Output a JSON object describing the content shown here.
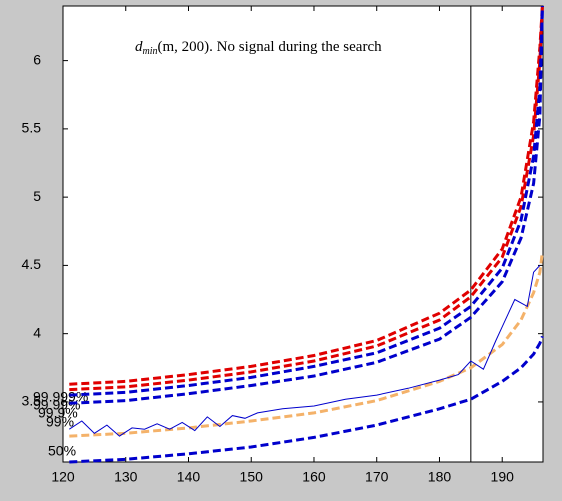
{
  "chart_data": {
    "type": "line",
    "title_symbol": "d",
    "title_subscript": "min",
    "title_text": "(m, 200). No signal during the search",
    "xlim": [
      120,
      196.5
    ],
    "ylim": [
      3.06,
      6.4
    ],
    "xticks": [
      120,
      130,
      140,
      150,
      160,
      170,
      180,
      190
    ],
    "yticks": [
      3.5,
      4,
      4.5,
      5,
      5.5,
      6
    ],
    "vline": 185,
    "annotations": [
      "99.999%",
      "99.99%",
      "99.9%",
      "99%",
      "50%"
    ],
    "series": [
      {
        "color": "#e00000",
        "linestyle": "dashed",
        "x": [
          121,
          130,
          140,
          150,
          160,
          170,
          180,
          185,
          190,
          193,
          195,
          196,
          196.4
        ],
        "values": [
          3.63,
          3.65,
          3.7,
          3.76,
          3.84,
          3.95,
          4.15,
          4.32,
          4.62,
          5.0,
          5.55,
          6.1,
          6.4
        ]
      },
      {
        "color": "#e00000",
        "linestyle": "dashed",
        "x": [
          121,
          130,
          140,
          150,
          160,
          170,
          180,
          185,
          190,
          193,
          195,
          196,
          196.4
        ],
        "values": [
          3.59,
          3.61,
          3.66,
          3.72,
          3.8,
          3.91,
          4.1,
          4.27,
          4.56,
          4.93,
          5.45,
          6.0,
          6.4
        ]
      },
      {
        "color": "#0000cc",
        "linestyle": "dashed",
        "x": [
          121,
          130,
          140,
          150,
          160,
          170,
          180,
          185,
          190,
          193,
          195,
          196,
          196.4
        ],
        "values": [
          3.55,
          3.57,
          3.62,
          3.68,
          3.76,
          3.86,
          4.04,
          4.2,
          4.48,
          4.83,
          5.3,
          5.8,
          6.4
        ]
      },
      {
        "color": "#0000cc",
        "linestyle": "dashed",
        "x": [
          121,
          130,
          140,
          150,
          160,
          170,
          180,
          185,
          190,
          193,
          195,
          196,
          196.4
        ],
        "values": [
          3.49,
          3.51,
          3.56,
          3.62,
          3.69,
          3.79,
          3.96,
          4.12,
          4.38,
          4.7,
          5.1,
          5.6,
          6.4
        ]
      },
      {
        "color": "#f4b26a",
        "linestyle": "dashed",
        "x": [
          121,
          130,
          140,
          150,
          160,
          170,
          180,
          185,
          190,
          193,
          195,
          196,
          196.4
        ],
        "values": [
          3.25,
          3.27,
          3.31,
          3.36,
          3.42,
          3.51,
          3.65,
          3.75,
          3.92,
          4.1,
          4.3,
          4.45,
          4.6
        ]
      },
      {
        "color": "#0000cc",
        "linestyle": "dashed",
        "x": [
          121,
          130,
          140,
          150,
          160,
          170,
          180,
          185,
          190,
          193,
          195,
          196,
          196.4
        ],
        "values": [
          3.06,
          3.08,
          3.12,
          3.17,
          3.24,
          3.33,
          3.45,
          3.52,
          3.65,
          3.75,
          3.85,
          3.93,
          3.98
        ]
      },
      {
        "color": "#0000cc",
        "linestyle": "solid",
        "x": [
          121,
          123,
          125,
          127,
          129,
          131,
          133,
          135,
          137,
          139,
          141,
          143,
          145,
          147,
          149,
          151,
          155,
          160,
          165,
          170,
          175,
          180,
          183,
          185,
          187,
          189,
          190,
          192,
          194,
          195,
          196
        ],
        "values": [
          3.3,
          3.36,
          3.27,
          3.33,
          3.25,
          3.31,
          3.3,
          3.34,
          3.3,
          3.35,
          3.29,
          3.39,
          3.32,
          3.4,
          3.38,
          3.42,
          3.45,
          3.47,
          3.52,
          3.55,
          3.6,
          3.66,
          3.7,
          3.8,
          3.74,
          3.95,
          4.05,
          4.25,
          4.2,
          4.45,
          4.5
        ]
      }
    ]
  }
}
